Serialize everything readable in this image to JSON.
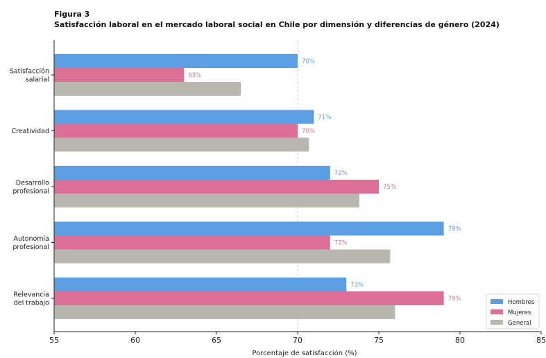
{
  "figure": {
    "label": "Figura 3",
    "title": "Satisfacción laboral en el mercado laboral social en Chile por dimensión y diferencias de género (2024)"
  },
  "chart_data": {
    "type": "bar",
    "orientation": "horizontal",
    "categories": [
      [
        "Satisfacción",
        "salarial"
      ],
      [
        "Creatividad"
      ],
      [
        "Desarrollo",
        "profesional"
      ],
      [
        "Autonomía",
        "profesional"
      ],
      [
        "Relevancia",
        "del trabajo"
      ]
    ],
    "series": [
      {
        "name": "Hombres",
        "color": "#5b9ee1",
        "values": [
          70,
          71,
          72,
          79,
          73
        ],
        "labels": [
          "70%",
          "71%",
          "72%",
          "79%",
          "73%"
        ]
      },
      {
        "name": "Mujeres",
        "color": "#dc6f96",
        "values": [
          63,
          70,
          75,
          72,
          79
        ],
        "labels": [
          "63%",
          "70%",
          "75%",
          "72%",
          "79%"
        ]
      },
      {
        "name": "General",
        "color": "#b8b8b0",
        "values": [
          66.5,
          70.7,
          73.8,
          75.7,
          76
        ],
        "labels": [
          "",
          "",
          "",
          "",
          ""
        ]
      }
    ],
    "xlabel": "Porcentaje de satisfacción (%)",
    "xlim": [
      55,
      85
    ],
    "xticks": [
      55,
      60,
      65,
      70,
      75,
      80,
      85
    ],
    "reference_line": 70,
    "grid": false,
    "legend_position": "bottom-right"
  }
}
